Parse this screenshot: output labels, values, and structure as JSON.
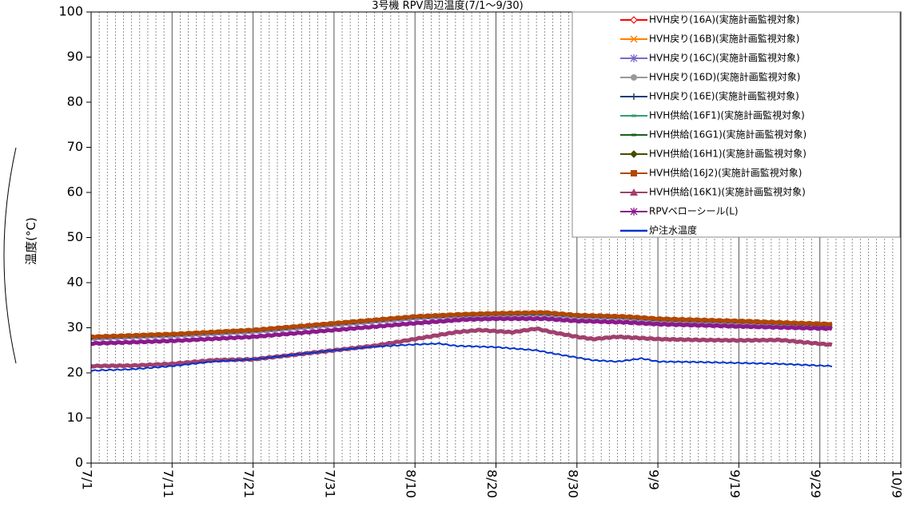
{
  "chart_data": {
    "type": "line",
    "title": "3号機 RPV周辺温度(7/1〜9/30)",
    "xlabel": "",
    "ylabel": "温度(°C)",
    "ylim": [
      0,
      100
    ],
    "yticks": [
      0,
      10,
      20,
      30,
      40,
      50,
      60,
      70,
      80,
      90,
      100
    ],
    "xticks": [
      "7/1",
      "7/11",
      "7/21",
      "7/31",
      "8/10",
      "8/20",
      "8/30",
      "9/9",
      "9/19",
      "9/29",
      "10/9"
    ],
    "xrange_days": [
      0,
      100
    ],
    "grid": "vertical-daily",
    "legend_position": "top-right",
    "series": [
      {
        "name": "HVH戻り(16A)(実施計画監視対象)",
        "color": "#ff0000",
        "marker": "diamond-open",
        "x": [
          0,
          10,
          20,
          30,
          40,
          46,
          50,
          56,
          60,
          66,
          70,
          80,
          91.5
        ],
        "y": [
          28.0,
          28.6,
          29.5,
          31.0,
          32.5,
          33.0,
          33.2,
          33.3,
          32.8,
          32.5,
          32.0,
          31.5,
          30.8
        ]
      },
      {
        "name": "HVH戻り(16B)(実施計画監視対象)",
        "color": "#ff8000",
        "marker": "x",
        "x": [
          0,
          10,
          20,
          30,
          40,
          46,
          50,
          56,
          60,
          66,
          70,
          80,
          91.5
        ],
        "y": [
          27.8,
          28.4,
          29.3,
          30.8,
          32.3,
          32.8,
          33.0,
          33.1,
          32.6,
          32.3,
          31.8,
          31.3,
          30.6
        ]
      },
      {
        "name": "HVH戻り(16C)(実施計画監視対象)",
        "color": "#7b68c8",
        "marker": "asterisk",
        "x": [
          0,
          10,
          20,
          30,
          40,
          46,
          50,
          56,
          60,
          66,
          70,
          80,
          91.5
        ],
        "y": [
          27.6,
          28.2,
          29.1,
          30.6,
          32.1,
          32.6,
          32.8,
          32.9,
          32.4,
          32.1,
          31.6,
          31.1,
          30.4
        ]
      },
      {
        "name": "HVH戻り(16D)(実施計画監視対象)",
        "color": "#999999",
        "marker": "circle",
        "x": [
          0,
          10,
          20,
          30,
          40,
          46,
          50,
          56,
          60,
          66,
          70,
          80,
          91.5
        ],
        "y": [
          27.5,
          28.1,
          29.0,
          30.5,
          32.0,
          32.5,
          32.7,
          32.8,
          32.3,
          32.0,
          31.5,
          31.0,
          30.3
        ]
      },
      {
        "name": "HVH戻り(16E)(実施計画監視対象)",
        "color": "#1f3d7a",
        "marker": "plus",
        "x": [
          0,
          10,
          20,
          30,
          40,
          46,
          50,
          56,
          60,
          66,
          70,
          80,
          91.5
        ],
        "y": [
          27.7,
          28.3,
          29.2,
          30.7,
          32.2,
          32.7,
          32.9,
          33.0,
          32.5,
          32.2,
          31.7,
          31.2,
          30.5
        ]
      },
      {
        "name": "HVH供給(16F1)(実施計画監視対象)",
        "color": "#2e9e6b",
        "marker": "dash",
        "x": [
          0,
          10,
          20,
          30,
          40,
          46,
          50,
          56,
          60,
          66,
          70,
          80,
          91.5
        ],
        "y": [
          27.9,
          28.5,
          29.4,
          30.9,
          32.4,
          32.9,
          33.1,
          33.2,
          32.7,
          32.4,
          31.9,
          31.4,
          30.7
        ]
      },
      {
        "name": "HVH供給(16G1)(実施計画監視対象)",
        "color": "#1b5e20",
        "marker": "dash",
        "x": [
          0,
          10,
          20,
          30,
          40,
          46,
          50,
          56,
          60,
          66,
          70,
          80,
          91.5
        ],
        "y": [
          28.1,
          28.7,
          29.6,
          31.1,
          32.6,
          33.1,
          33.3,
          33.4,
          32.9,
          32.6,
          32.1,
          31.6,
          30.9
        ]
      },
      {
        "name": "HVH供給(16H1)(実施計画監視対象)",
        "color": "#4a4a00",
        "marker": "diamond",
        "x": [
          0,
          10,
          20,
          30,
          40,
          46,
          50,
          56,
          60,
          66,
          70,
          80,
          91.5
        ],
        "y": [
          28.2,
          28.8,
          29.7,
          31.2,
          32.7,
          33.2,
          33.4,
          33.6,
          33.0,
          32.7,
          32.2,
          31.7,
          31.0
        ]
      },
      {
        "name": "HVH供給(16J2)(実施計画監視対象)",
        "color": "#b34700",
        "marker": "square",
        "x": [
          0,
          10,
          20,
          30,
          40,
          46,
          50,
          56,
          60,
          66,
          70,
          80,
          91.5
        ],
        "y": [
          28.0,
          28.6,
          29.5,
          31.0,
          32.5,
          33.0,
          33.2,
          33.4,
          32.8,
          32.5,
          32.0,
          31.5,
          30.8
        ]
      },
      {
        "name": "HVH供給(16K1)(実施計画監視対象)",
        "color": "#a0406e",
        "marker": "triangle",
        "x": [
          0,
          5,
          10,
          15,
          20,
          25,
          30,
          35,
          40,
          45,
          48,
          52,
          55,
          57,
          60,
          62,
          65,
          70,
          75,
          80,
          85,
          91.5
        ],
        "y": [
          21.5,
          21.6,
          22.0,
          22.8,
          23.0,
          24.0,
          25.0,
          26.0,
          27.5,
          29.0,
          29.5,
          29.0,
          29.8,
          29.0,
          28.0,
          27.5,
          28.0,
          27.5,
          27.3,
          27.2,
          27.3,
          26.2
        ]
      },
      {
        "name": "RPVベローシール(L)",
        "color": "#8b1a8b",
        "marker": "asterisk",
        "x": [
          0,
          10,
          20,
          30,
          40,
          46,
          50,
          56,
          60,
          66,
          70,
          80,
          91.5
        ],
        "y": [
          26.5,
          27.1,
          28.0,
          29.5,
          31.0,
          31.8,
          32.0,
          32.0,
          31.5,
          31.2,
          30.8,
          30.3,
          29.8
        ]
      },
      {
        "name": "炉注水温度",
        "color": "#0033cc",
        "marker": "none",
        "x": [
          0,
          5,
          10,
          15,
          20,
          25,
          30,
          35,
          40,
          43,
          45,
          50,
          55,
          58,
          62,
          65,
          68,
          70,
          75,
          80,
          85,
          91.5
        ],
        "y": [
          20.5,
          20.8,
          21.5,
          22.5,
          23.0,
          24.0,
          25.0,
          25.8,
          26.3,
          26.5,
          26.0,
          25.7,
          25.0,
          24.0,
          22.8,
          22.5,
          23.2,
          22.5,
          22.4,
          22.2,
          22.0,
          21.5
        ]
      }
    ]
  }
}
